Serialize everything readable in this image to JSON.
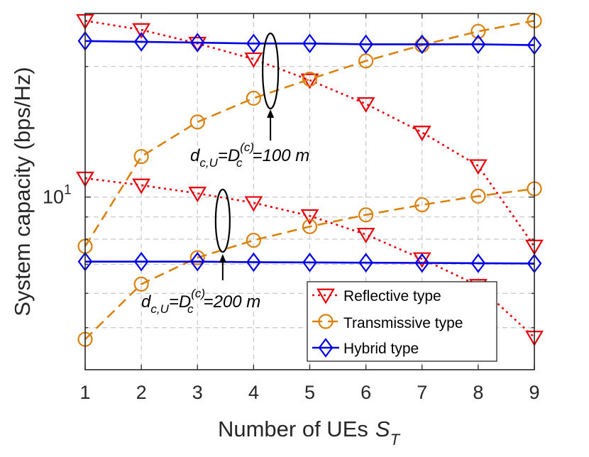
{
  "chart_data": {
    "type": "line",
    "title": "",
    "xlabel": "Number of UEs",
    "xlabel_symbol": "S",
    "xlabel_subscript": "T",
    "ylabel": "System capacity (bps/Hz)",
    "yscale": "log",
    "xlim": [
      1,
      9
    ],
    "ylim": [
      4.0,
      26.5
    ],
    "x": [
      1,
      2,
      3,
      4,
      5,
      6,
      7,
      8,
      9
    ],
    "x_tick_labels": [
      "1",
      "2",
      "3",
      "4",
      "5",
      "6",
      "7",
      "8",
      "9"
    ],
    "y_tick_labels": [
      {
        "value": 10,
        "base": "10",
        "exp": "1"
      }
    ],
    "grid": true,
    "legend_position": "bottom-right",
    "series": [
      {
        "name": "Reflective type",
        "group": "100 m",
        "color": "#e8000b",
        "dash": "dotted",
        "marker": "triangle-down",
        "values": [
          25.5,
          24.3,
          22.6,
          20.8,
          18.6,
          16.4,
          14.1,
          11.8,
          7.7
        ]
      },
      {
        "name": "Transmissive type",
        "group": "100 m",
        "color": "#d9820f",
        "dash": "dashed",
        "marker": "circle",
        "values": [
          7.7,
          12.4,
          14.9,
          16.9,
          18.7,
          20.6,
          22.4,
          24.1,
          25.5
        ]
      },
      {
        "name": "Hybrid type",
        "group": "100 m",
        "color": "#0000e6",
        "dash": "solid",
        "marker": "diamond",
        "values": [
          22.9,
          22.8,
          22.7,
          22.6,
          22.6,
          22.5,
          22.5,
          22.5,
          22.4
        ]
      },
      {
        "name": "Reflective type",
        "group": "200 m",
        "color": "#e8000b",
        "dash": "dotted",
        "marker": "triangle-down",
        "values": [
          11.05,
          10.65,
          10.2,
          9.7,
          9.05,
          8.2,
          7.2,
          6.25,
          4.75
        ]
      },
      {
        "name": "Transmissive type",
        "group": "200 m",
        "color": "#d9820f",
        "dash": "dashed",
        "marker": "circle",
        "values": [
          4.7,
          6.3,
          7.25,
          7.95,
          8.55,
          9.1,
          9.6,
          10.05,
          10.45
        ]
      },
      {
        "name": "Hybrid type",
        "group": "200 m",
        "color": "#0000e6",
        "dash": "solid",
        "marker": "diamond",
        "values": [
          7.1,
          7.1,
          7.1,
          7.08,
          7.07,
          7.06,
          7.05,
          7.04,
          7.03
        ]
      }
    ],
    "annotations": [
      {
        "id": "ann100",
        "lhs": "d",
        "lhs_sub": "c,U",
        "eq": "=D",
        "sup": "(c)",
        "sub": "c",
        "rhs": "=100 m",
        "target_x": 4.3
      },
      {
        "id": "ann200",
        "lhs": "d",
        "lhs_sub": "c,U",
        "eq": "=D",
        "sup": "(c)",
        "sub": "c",
        "rhs": "=200 m",
        "target_x": 3.45
      }
    ]
  }
}
